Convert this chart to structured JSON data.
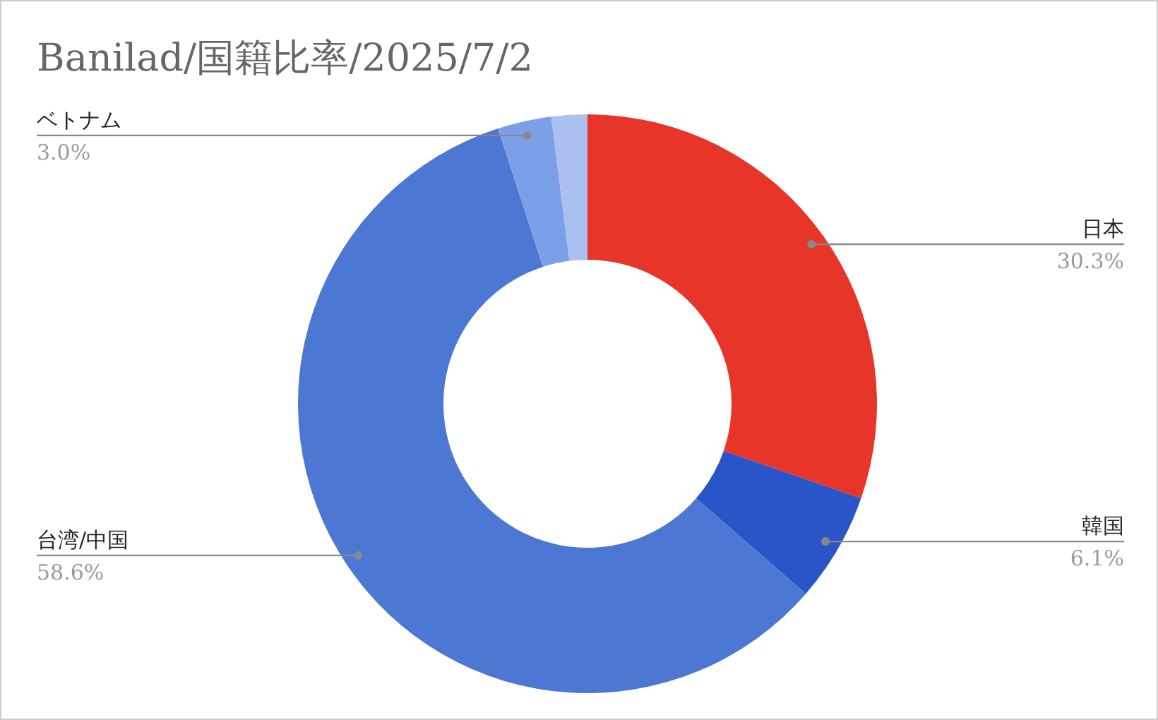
{
  "chart_data": {
    "type": "donut",
    "title": "Banilad/国籍比率/2025/7/2",
    "categories": [
      "日本",
      "韓国",
      "台湾/中国",
      "ベトナム",
      null
    ],
    "values": [
      30.3,
      6.1,
      58.6,
      3.0,
      2.0
    ],
    "value_labels": [
      "30.3%",
      "6.1%",
      "58.6%",
      "3.0%",
      null
    ],
    "colors": [
      "#e8352a",
      "#2a55c8",
      "#4c78d4",
      "#7ba0e8",
      "#a9c0f0"
    ]
  }
}
